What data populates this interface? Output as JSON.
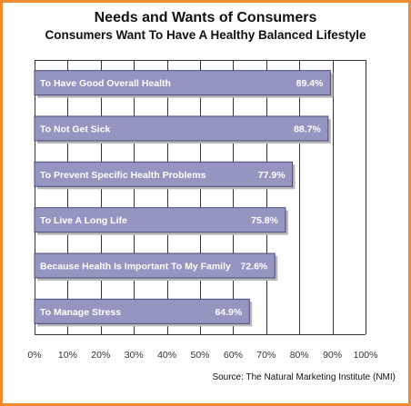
{
  "chart_data": {
    "type": "bar",
    "orientation": "horizontal",
    "title": "Needs and Wants of Consumers",
    "subtitle": "Consumers Want To Have A Healthy Balanced Lifestyle",
    "categories": [
      "To Have Good Overall Health",
      "To Not Get Sick",
      "To Prevent Specific Health Problems",
      "To Live A Long Life",
      "Because Health Is Important To My Family",
      "To Manage Stress"
    ],
    "values": [
      89.4,
      88.7,
      77.9,
      75.8,
      72.6,
      64.9
    ],
    "value_labels": [
      "89.4%",
      "88.7%",
      "77.9%",
      "75.8%",
      "72.6%",
      "64.9%"
    ],
    "x_ticks": [
      "0%",
      "10%",
      "20%",
      "30%",
      "40%",
      "50%",
      "60%",
      "70%",
      "80%",
      "90%",
      "100%"
    ],
    "xlim": [
      0,
      100
    ],
    "grid": true,
    "bar_color": "#9595c2",
    "bar_border_color": "#4a4a78",
    "source": "Source: The Natural Marketing Institute (NMI)"
  }
}
